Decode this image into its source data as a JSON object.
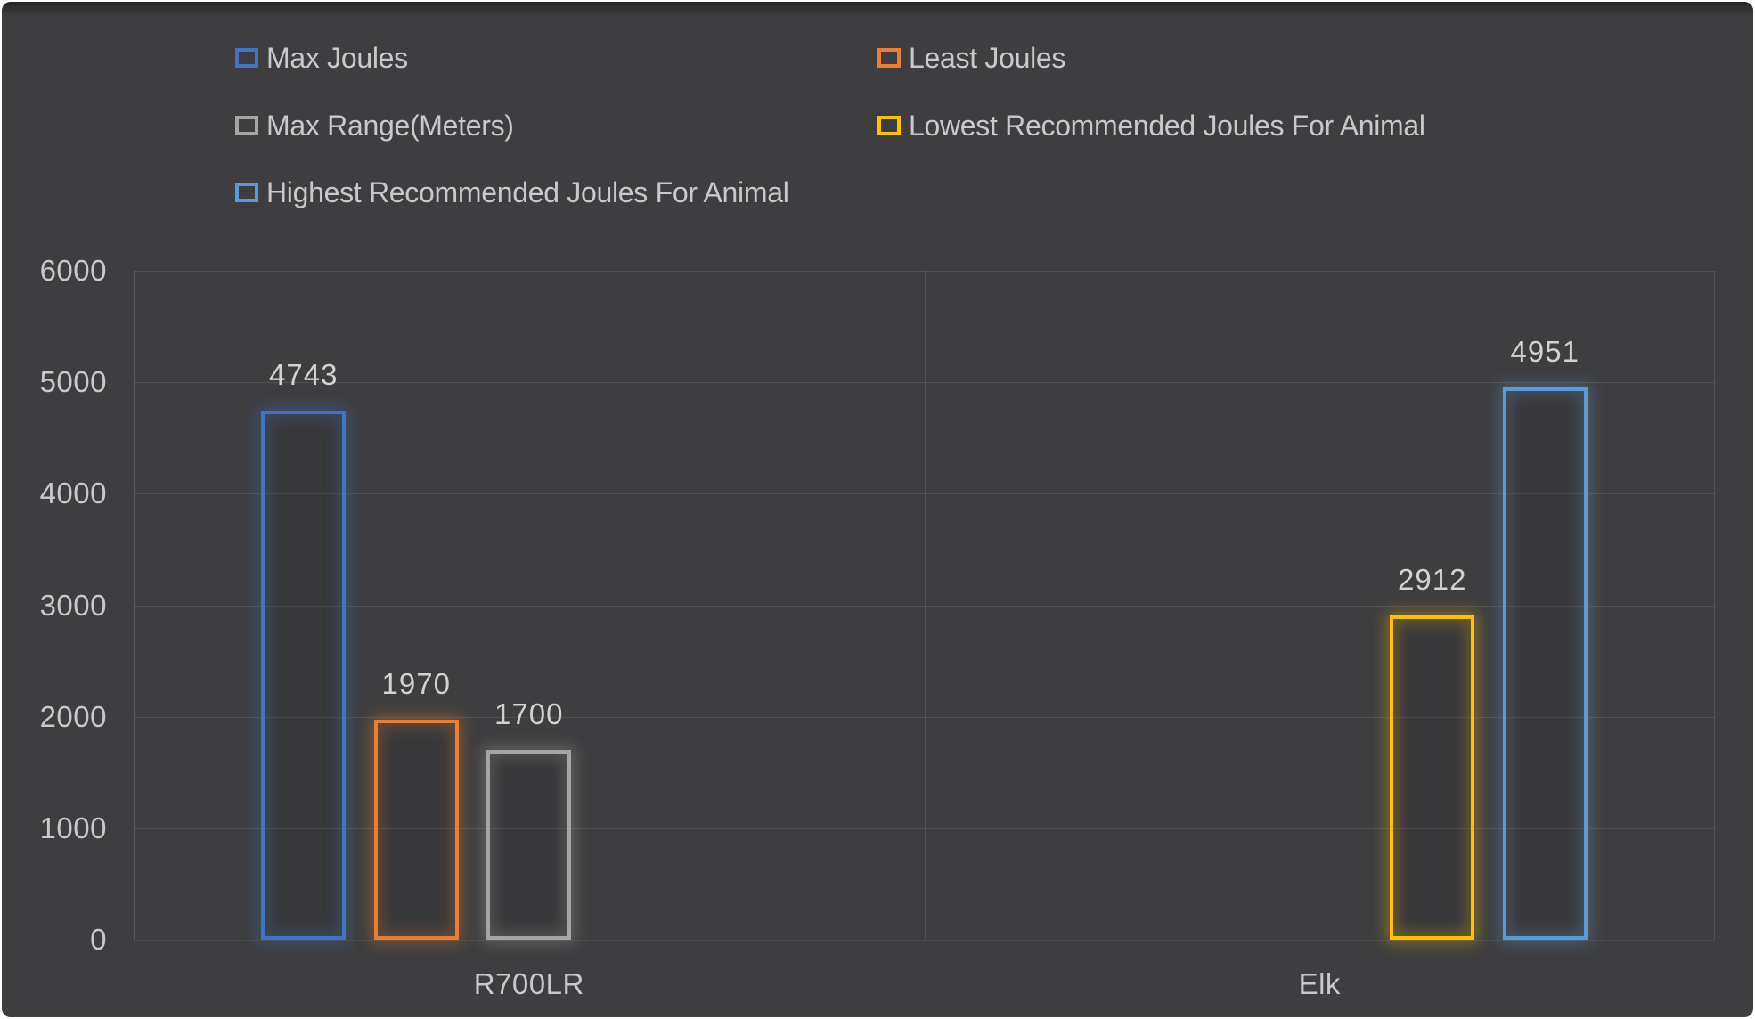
{
  "chart_data": {
    "type": "bar",
    "title": "",
    "categories": [
      "R700LR",
      "Elk"
    ],
    "series": [
      {
        "name": "Max Joules",
        "color": "#4472C4",
        "values": [
          4743,
          null
        ]
      },
      {
        "name": "Least Joules",
        "color": "#ED7D31",
        "values": [
          1970,
          null
        ]
      },
      {
        "name": "Max Range(Meters)",
        "color": "#A5A5A5",
        "values": [
          1700,
          null
        ]
      },
      {
        "name": "Lowest Recommended Joules For Animal",
        "color": "#FFC000",
        "values": [
          null,
          2912
        ]
      },
      {
        "name": "Highest Recommended Joules For Animal",
        "color": "#5B9BD5",
        "values": [
          null,
          4951
        ]
      }
    ],
    "ylim": [
      0,
      6000
    ],
    "ytick_step": 1000,
    "ytick_labels": [
      "0",
      "1000",
      "2000",
      "3000",
      "4000",
      "5000",
      "6000"
    ],
    "grid": true,
    "legend_position": "top-left, two columns, three rows",
    "bar_style": "hollow outline with outer glow"
  },
  "colors": {
    "background": "#3e3e40",
    "frame_border": "#ffffff",
    "text": "#c9c9cb",
    "value_text": "#d2d2d3",
    "gridline": "rgba(255,255,255,0.10)"
  }
}
